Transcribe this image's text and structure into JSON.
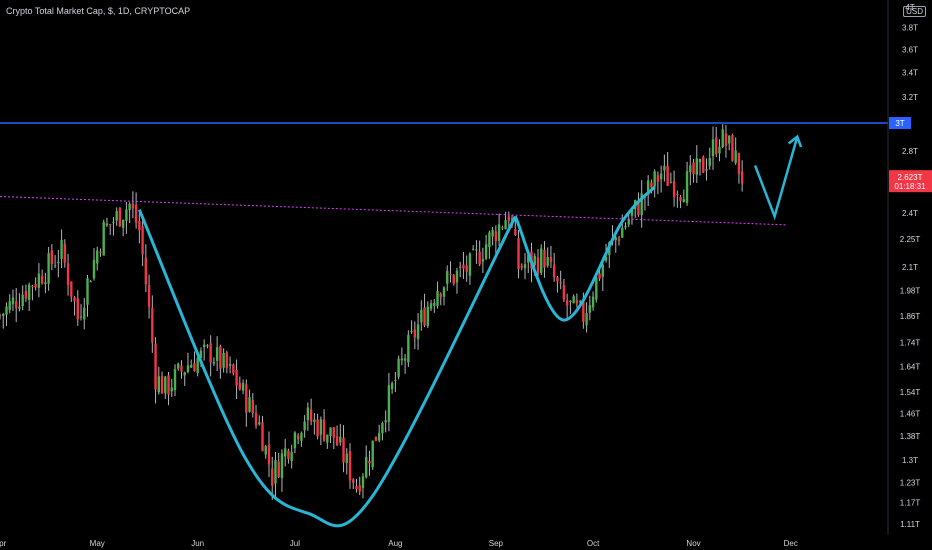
{
  "header": {
    "title": "Crypto Total Market Cap, $, 1D, CRYPTOCAP",
    "currency": "USD"
  },
  "colors": {
    "up": "#4caf50",
    "down": "#f23645",
    "wick": "#b2b5be",
    "resistance": "#2962ff",
    "support": "#e040fb",
    "pattern": "#29b6d6",
    "price_tag": "#f23645"
  },
  "chart_data": {
    "type": "candlestick",
    "title": "Crypto Total Market Cap, $, 1D, CRYPTOCAP",
    "y_scale": "log",
    "ylim": [
      1.08,
      4.05
    ],
    "y_ticks": [
      {
        "label": "1.11T",
        "value": 1.11
      },
      {
        "label": "1.17T",
        "value": 1.17
      },
      {
        "label": "1.23T",
        "value": 1.23
      },
      {
        "label": "1.3T",
        "value": 1.3
      },
      {
        "label": "1.38T",
        "value": 1.38
      },
      {
        "label": "1.46T",
        "value": 1.46
      },
      {
        "label": "1.54T",
        "value": 1.54
      },
      {
        "label": "1.64T",
        "value": 1.64
      },
      {
        "label": "1.74T",
        "value": 1.74
      },
      {
        "label": "1.86T",
        "value": 1.86
      },
      {
        "label": "1.98T",
        "value": 1.98
      },
      {
        "label": "2.1T",
        "value": 2.1
      },
      {
        "label": "2.25T",
        "value": 2.25
      },
      {
        "label": "2.4T",
        "value": 2.4
      },
      {
        "label": "2.8T",
        "value": 2.8
      },
      {
        "label": "3.2T",
        "value": 3.2
      },
      {
        "label": "3.4T",
        "value": 3.4
      },
      {
        "label": "3.6T",
        "value": 3.6
      },
      {
        "label": "3.8T",
        "value": 3.8
      },
      {
        "label": "4T",
        "value": 4.0
      }
    ],
    "x_ticks": [
      "Apr",
      "May",
      "Jun",
      "Jul",
      "Aug",
      "Sep",
      "Oct",
      "Nov",
      "Dec"
    ],
    "x_domain": [
      "2021-04-01",
      "2021-12-31"
    ],
    "x_tick_dates": [
      "2021-04-01",
      "2021-05-01",
      "2021-06-01",
      "2021-07-01",
      "2021-08-01",
      "2021-09-01",
      "2021-10-01",
      "2021-11-01",
      "2021-12-01"
    ],
    "resistance": {
      "label": "3T",
      "value": 3.0
    },
    "current_price": {
      "label": "2.623T",
      "countdown": "01:18:31",
      "value": 2.623
    },
    "support_line": [
      {
        "date": "2021-04-01",
        "value": 2.5
      },
      {
        "date": "2021-11-30",
        "value": 2.33
      }
    ],
    "cup_curve": [
      {
        "date": "2021-05-14",
        "value": 2.42
      },
      {
        "date": "2021-06-15",
        "value": 1.32
      },
      {
        "date": "2021-07-05",
        "value": 1.14
      },
      {
        "date": "2021-07-25",
        "value": 1.19
      },
      {
        "date": "2021-09-07",
        "value": 2.38
      }
    ],
    "handle_curve": [
      {
        "date": "2021-09-07",
        "value": 2.38
      },
      {
        "date": "2021-09-22",
        "value": 1.84
      },
      {
        "date": "2021-10-10",
        "value": 2.35
      },
      {
        "date": "2021-10-20",
        "value": 2.56
      }
    ],
    "projection": [
      {
        "date": "2021-11-20",
        "value": 2.7
      },
      {
        "date": "2021-11-26",
        "value": 2.38
      },
      {
        "date": "2021-12-03",
        "value": 2.9
      }
    ],
    "closes": [
      {
        "date": "2021-04-01",
        "value": 1.86
      },
      {
        "date": "2021-04-13",
        "value": 2.05
      },
      {
        "date": "2021-04-20",
        "value": 2.18
      },
      {
        "date": "2021-04-25",
        "value": 1.85
      },
      {
        "date": "2021-05-03",
        "value": 2.3
      },
      {
        "date": "2021-05-11",
        "value": 2.45
      },
      {
        "date": "2021-05-14",
        "value": 2.3
      },
      {
        "date": "2021-05-19",
        "value": 1.6
      },
      {
        "date": "2021-05-22",
        "value": 1.55
      },
      {
        "date": "2021-05-29",
        "value": 1.65
      },
      {
        "date": "2021-06-05",
        "value": 1.7
      },
      {
        "date": "2021-06-12",
        "value": 1.6
      },
      {
        "date": "2021-06-20",
        "value": 1.42
      },
      {
        "date": "2021-06-24",
        "value": 1.25
      },
      {
        "date": "2021-07-04",
        "value": 1.45
      },
      {
        "date": "2021-07-13",
        "value": 1.38
      },
      {
        "date": "2021-07-20",
        "value": 1.22
      },
      {
        "date": "2021-07-25",
        "value": 1.35
      },
      {
        "date": "2021-08-05",
        "value": 1.72
      },
      {
        "date": "2021-08-14",
        "value": 2.0
      },
      {
        "date": "2021-08-24",
        "value": 2.1
      },
      {
        "date": "2021-09-05",
        "value": 2.4
      },
      {
        "date": "2021-09-08",
        "value": 2.1
      },
      {
        "date": "2021-09-16",
        "value": 2.15
      },
      {
        "date": "2021-09-22",
        "value": 1.92
      },
      {
        "date": "2021-09-28",
        "value": 1.86
      },
      {
        "date": "2021-10-06",
        "value": 2.2
      },
      {
        "date": "2021-10-15",
        "value": 2.45
      },
      {
        "date": "2021-10-22",
        "value": 2.65
      },
      {
        "date": "2021-10-28",
        "value": 2.55
      },
      {
        "date": "2021-11-04",
        "value": 2.7
      },
      {
        "date": "2021-11-09",
        "value": 2.9
      },
      {
        "date": "2021-11-13",
        "value": 2.8
      },
      {
        "date": "2021-11-16",
        "value": 2.623
      }
    ]
  }
}
